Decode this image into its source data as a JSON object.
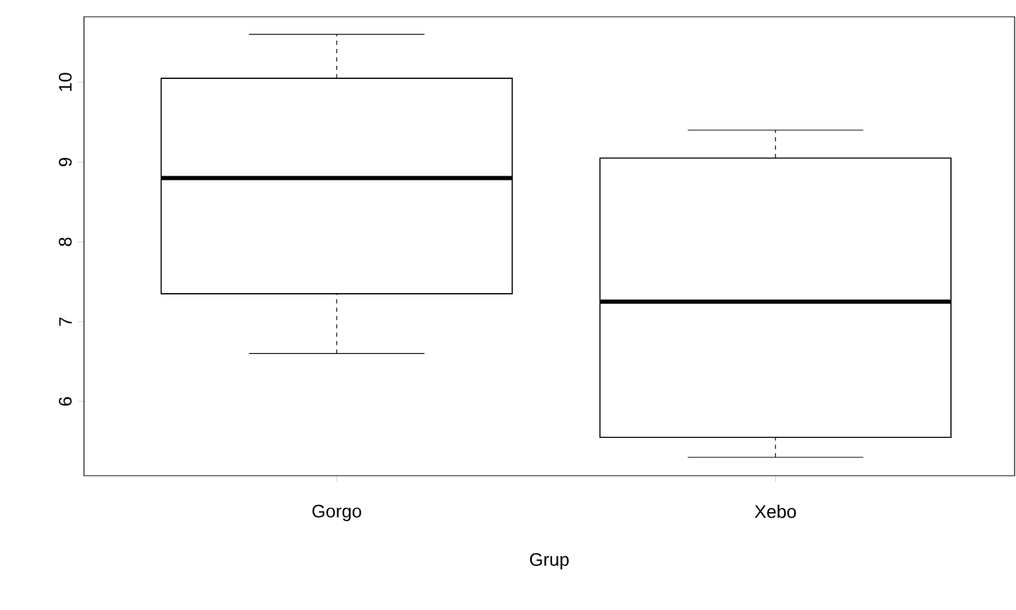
{
  "chart_data": {
    "type": "box",
    "xlabel": "Grup",
    "categories": [
      "Gorgo",
      "Xebo"
    ],
    "boxes": [
      {
        "low": 6.6,
        "q1": 7.35,
        "median": 8.8,
        "q3": 10.05,
        "high": 10.6
      },
      {
        "low": 5.3,
        "q1": 5.55,
        "median": 7.25,
        "q3": 9.05,
        "high": 9.4
      }
    ],
    "ylim": [
      5.07,
      10.82
    ],
    "yticks": [
      6,
      7,
      8,
      9,
      10
    ],
    "grid": false
  }
}
